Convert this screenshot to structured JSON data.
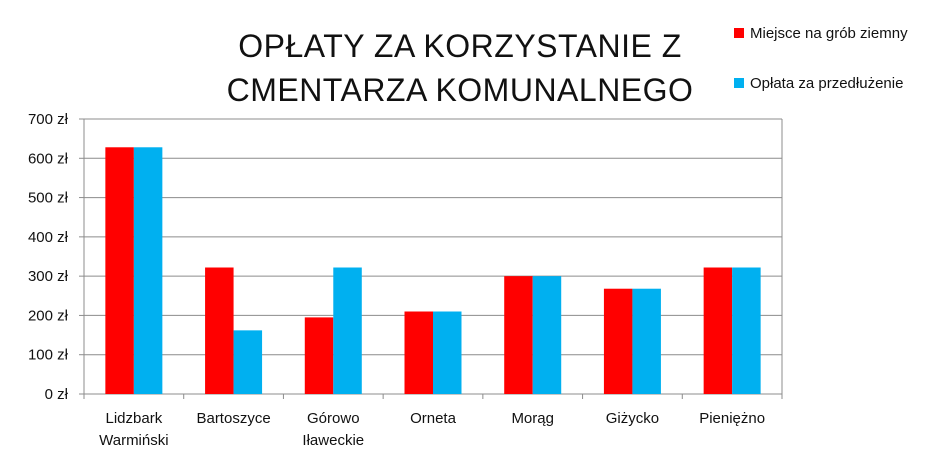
{
  "chart_data": {
    "type": "bar",
    "title": [
      "OPŁATY ZA KORZYSTANIE Z",
      "CMENTARZA KOMUNALNEGO"
    ],
    "categories": [
      [
        "Lidzbark",
        "Warmiński"
      ],
      [
        "Bartoszyce"
      ],
      [
        "Górowo",
        "Iławeckie"
      ],
      [
        "Orneta"
      ],
      [
        "Morąg"
      ],
      [
        "Giżycko"
      ],
      [
        "Pieniężno"
      ]
    ],
    "series": [
      {
        "name": "Miejsce na grób ziemny",
        "color": "#ff0000",
        "values": [
          628,
          322,
          195,
          210,
          300,
          268,
          322
        ]
      },
      {
        "name": "Opłata za przedłużenie",
        "color": "#00b0f0",
        "values": [
          628,
          162,
          322,
          210,
          300,
          268,
          322
        ]
      }
    ],
    "ylim": [
      0,
      700
    ],
    "yticks": [
      "0 zł",
      "100 zł",
      "200 zł",
      "300 zł",
      "400 zł",
      "500 zł",
      "600 zł",
      "700 zł"
    ],
    "grid": true,
    "legend_position": "top-right"
  }
}
